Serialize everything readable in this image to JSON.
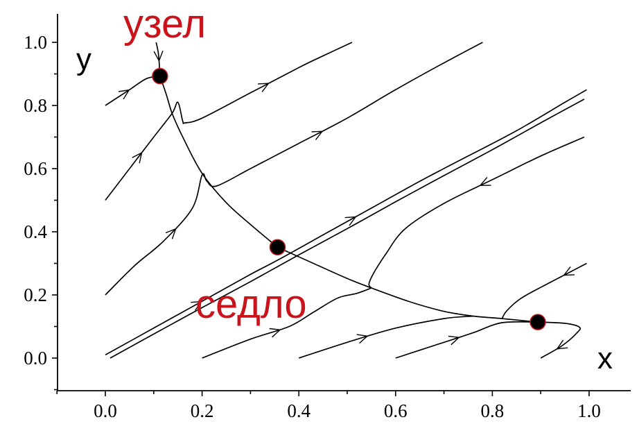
{
  "chart_data": {
    "type": "phase-portrait",
    "xlabel": "x",
    "ylabel": "y",
    "xlim": [
      -0.08,
      1.0
    ],
    "ylim": [
      -0.08,
      1.06
    ],
    "x_ticks": [
      0.0,
      0.2,
      0.4,
      0.6,
      0.8,
      1.0
    ],
    "x_tick_labels": [
      "0.0",
      "0.2",
      "0.4",
      "0.6",
      "0.8",
      "1.0"
    ],
    "y_ticks": [
      0.0,
      0.2,
      0.4,
      0.6,
      0.8,
      1.0
    ],
    "y_tick_labels": [
      "0.0",
      "0.2",
      "0.4",
      "0.6",
      "0.8",
      "1.0"
    ],
    "equilibria": [
      {
        "x": 0.113,
        "y": 0.893,
        "label": "узел"
      },
      {
        "x": 0.356,
        "y": 0.351,
        "label": "седло"
      },
      {
        "x": 0.894,
        "y": 0.114,
        "label": ""
      }
    ],
    "annotation_color": "#c8141a",
    "point_color": "#000000",
    "trajectories": [
      {
        "points": [
          [
            0.0,
            0.8
          ],
          [
            0.05,
            0.85
          ],
          [
            0.085,
            0.885
          ],
          [
            0.113,
            0.893
          ]
        ],
        "arrows": [
          0.45
        ]
      },
      {
        "points": [
          [
            0.105,
            1.0
          ],
          [
            0.11,
            0.96
          ],
          [
            0.113,
            0.893
          ]
        ],
        "arrows": [
          0.55
        ]
      },
      {
        "points": [
          [
            0.113,
            0.893
          ],
          [
            0.126,
            0.835
          ],
          [
            0.138,
            0.775
          ],
          [
            0.16,
            0.7
          ],
          [
            0.2,
            0.585
          ],
          [
            0.25,
            0.492
          ],
          [
            0.3,
            0.423
          ],
          [
            0.356,
            0.351
          ]
        ],
        "arrows": []
      },
      {
        "points": [
          [
            0.356,
            0.351
          ],
          [
            0.43,
            0.3
          ],
          [
            0.5,
            0.252
          ],
          [
            0.55,
            0.222
          ],
          [
            0.63,
            0.178
          ],
          [
            0.7,
            0.148
          ],
          [
            0.76,
            0.133
          ],
          [
            0.82,
            0.125
          ],
          [
            0.894,
            0.114
          ]
        ],
        "arrows": []
      },
      {
        "points": [
          [
            0.894,
            0.114
          ],
          [
            0.95,
            0.11
          ],
          [
            0.98,
            0.098
          ],
          [
            0.975,
            0.08
          ],
          [
            0.945,
            0.04
          ],
          [
            0.9,
            0.0
          ]
        ],
        "arrows": [
          0.8
        ]
      },
      {
        "points": [
          [
            0.0,
            0.5
          ],
          [
            0.05,
            0.6
          ],
          [
            0.1,
            0.7
          ],
          [
            0.138,
            0.775
          ],
          [
            0.15,
            0.81
          ],
          [
            0.16,
            0.75
          ],
          [
            0.165,
            0.745
          ],
          [
            0.2,
            0.76
          ],
          [
            0.3,
            0.84
          ],
          [
            0.4,
            0.92
          ],
          [
            0.44,
            0.95
          ],
          [
            0.51,
            1.0
          ]
        ],
        "arrows": [
          0.18,
          0.72
        ]
      },
      {
        "points": [
          [
            0.0,
            0.2
          ],
          [
            0.06,
            0.292
          ],
          [
            0.12,
            0.37
          ],
          [
            0.18,
            0.475
          ],
          [
            0.2,
            0.58
          ],
          [
            0.21,
            0.56
          ],
          [
            0.23,
            0.545
          ],
          [
            0.3,
            0.6
          ],
          [
            0.4,
            0.68
          ],
          [
            0.5,
            0.76
          ],
          [
            0.6,
            0.85
          ],
          [
            0.7,
            0.935
          ],
          [
            0.78,
            1.0
          ]
        ],
        "arrows": [
          0.2,
          0.62
        ]
      },
      {
        "points": [
          [
            0.0,
            0.01
          ],
          [
            0.1,
            0.095
          ],
          [
            0.2,
            0.18
          ],
          [
            0.3,
            0.265
          ],
          [
            0.356,
            0.31
          ],
          [
            0.45,
            0.39
          ],
          [
            0.55,
            0.475
          ],
          [
            0.65,
            0.56
          ],
          [
            0.75,
            0.64
          ],
          [
            0.85,
            0.72
          ],
          [
            0.95,
            0.81
          ],
          [
            0.995,
            0.85
          ]
        ],
        "arrows": [
          0.2,
          0.52
        ]
      },
      {
        "points": [
          [
            0.01,
            0.0
          ],
          [
            0.1,
            0.076
          ],
          [
            0.2,
            0.16
          ],
          [
            0.3,
            0.242
          ],
          [
            0.4,
            0.327
          ],
          [
            0.5,
            0.41
          ],
          [
            0.6,
            0.495
          ],
          [
            0.7,
            0.578
          ],
          [
            0.8,
            0.66
          ],
          [
            0.9,
            0.745
          ],
          [
            0.99,
            0.82
          ]
        ],
        "arrows": []
      },
      {
        "points": [
          [
            0.99,
            0.7
          ],
          [
            0.9,
            0.64
          ],
          [
            0.8,
            0.565
          ],
          [
            0.7,
            0.49
          ],
          [
            0.62,
            0.41
          ],
          [
            0.58,
            0.33
          ],
          [
            0.555,
            0.27
          ],
          [
            0.545,
            0.235
          ],
          [
            0.55,
            0.222
          ]
        ],
        "arrows": [
          0.42
        ]
      },
      {
        "points": [
          [
            0.2,
            0.0
          ],
          [
            0.3,
            0.06
          ],
          [
            0.38,
            0.1
          ],
          [
            0.43,
            0.145
          ],
          [
            0.48,
            0.19
          ],
          [
            0.52,
            0.205
          ],
          [
            0.55,
            0.222
          ]
        ],
        "arrows": [
          0.45
        ]
      },
      {
        "points": [
          [
            0.4,
            0.0
          ],
          [
            0.5,
            0.05
          ],
          [
            0.6,
            0.095
          ],
          [
            0.7,
            0.125
          ],
          [
            0.76,
            0.133
          ]
        ],
        "arrows": [
          0.4
        ]
      },
      {
        "points": [
          [
            0.6,
            0.0
          ],
          [
            0.7,
            0.05
          ],
          [
            0.76,
            0.08
          ],
          [
            0.82,
            0.112
          ],
          [
            0.894,
            0.114
          ]
        ],
        "arrows": [
          0.45
        ]
      },
      {
        "points": [
          [
            0.995,
            0.3
          ],
          [
            0.92,
            0.24
          ],
          [
            0.86,
            0.19
          ],
          [
            0.83,
            0.15
          ],
          [
            0.82,
            0.125
          ]
        ],
        "arrows": [
          0.25
        ]
      }
    ]
  }
}
